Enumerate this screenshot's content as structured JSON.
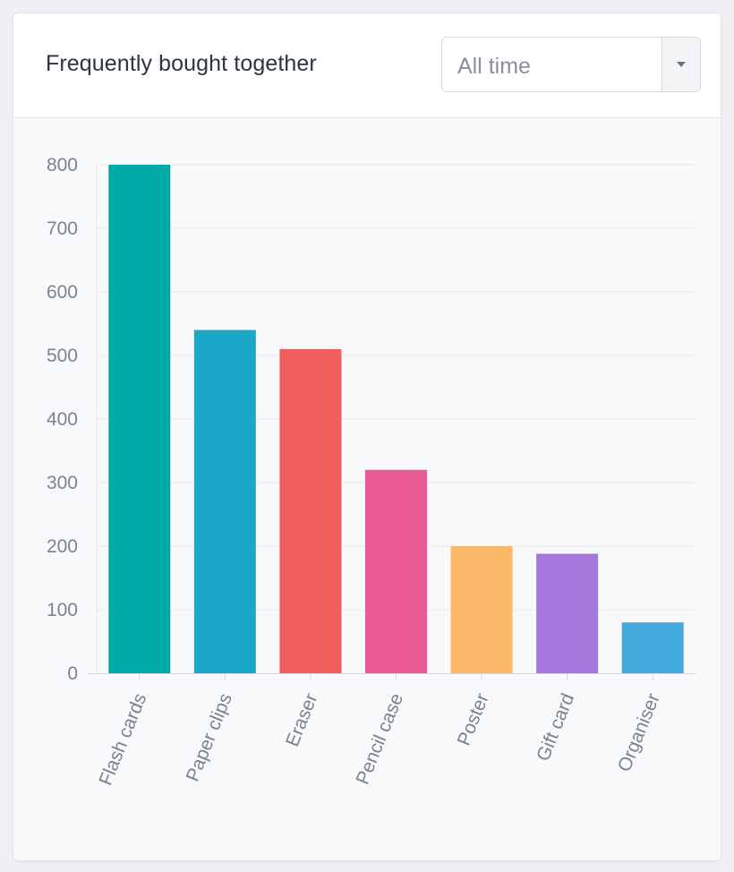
{
  "widget": {
    "title": "Frequently bought together",
    "filter": {
      "selected": "All time"
    }
  },
  "chart_data": {
    "type": "bar",
    "categories": [
      "Flash cards",
      "Paper clips",
      "Eraser",
      "Pencil case",
      "Poster",
      "Gift card",
      "Organiser"
    ],
    "values": [
      800,
      540,
      510,
      320,
      200,
      188,
      80
    ],
    "colors": [
      "#00a9a5",
      "#1aa7ca",
      "#ef5d5d",
      "#ea5a94",
      "#fdb769",
      "#a478dc",
      "#42abdb"
    ],
    "ylim": [
      0,
      800
    ],
    "yticks": [
      0,
      100,
      200,
      300,
      400,
      500,
      600,
      700,
      800
    ],
    "grid": true,
    "legend": "none",
    "xlabel": "",
    "ylabel": "",
    "title": ""
  }
}
